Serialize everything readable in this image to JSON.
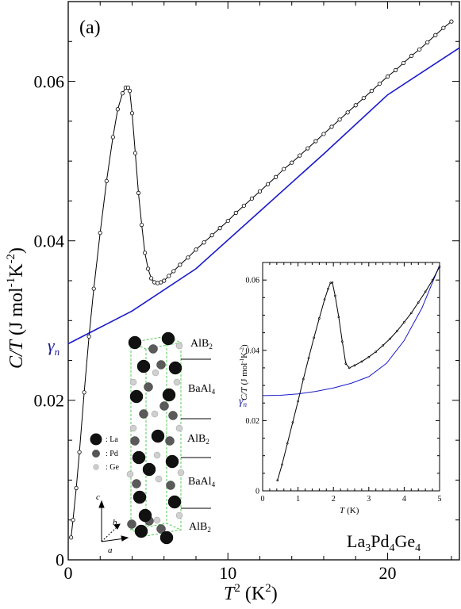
{
  "panel_label": "(a)",
  "compound_label": {
    "base": "La",
    "sub1": "3",
    "mid1": "Pd",
    "sub2": "4",
    "mid2": "Ge",
    "sub3": "4"
  },
  "gamma_label": {
    "main": "γ",
    "sub": "n"
  },
  "colors": {
    "data": "#000000",
    "fit": "#1a1acc",
    "gamma": "#1a1a99",
    "lattice": "#55cc55"
  },
  "chart_data": [
    {
      "type": "scatter",
      "panel": "main",
      "xlabel": {
        "var": "T",
        "sup": "2",
        "unit": "(K",
        "unit_sup": "2",
        "close": ")"
      },
      "ylabel": {
        "var": "C/T",
        "unit": "(J mol",
        "sup1": "-1",
        "mid": "K",
        "sup2": "-2",
        "close": ")"
      },
      "xlim": [
        0,
        24.5
      ],
      "ylim": [
        0,
        0.07
      ],
      "xticks": [
        0,
        10,
        20
      ],
      "xtick_labels": [
        "0",
        "10",
        "20"
      ],
      "yticks": [
        0,
        0.02,
        0.04,
        0.06
      ],
      "ytick_labels": [
        "0",
        "0.02",
        "0.04",
        "0.06"
      ],
      "grid": false,
      "series": [
        {
          "kind": "data",
          "x": [
            0.18,
            0.3,
            0.5,
            0.7,
            1.0,
            1.3,
            1.6,
            2.0,
            2.4,
            2.8,
            3.1,
            3.4,
            3.6,
            3.75,
            3.85,
            4.0,
            4.2,
            4.4,
            4.6,
            4.8,
            5.0,
            5.2,
            5.4,
            5.6,
            5.8,
            6.0,
            6.3,
            6.6,
            7.0,
            7.5,
            8.0,
            8.5,
            9.0,
            9.5,
            10.0,
            10.5,
            11.0,
            11.5,
            12.0,
            12.5,
            13.0,
            13.5,
            14.0,
            14.5,
            15.0,
            15.5,
            16.0,
            16.5,
            17.0,
            17.5,
            18.0,
            18.5,
            19.0,
            19.5,
            20.0,
            20.5,
            21.0,
            21.5,
            22.0,
            22.5,
            23.0,
            23.5,
            24.0
          ],
          "y": [
            0.0028,
            0.005,
            0.009,
            0.0135,
            0.021,
            0.028,
            0.034,
            0.041,
            0.0475,
            0.053,
            0.0565,
            0.0585,
            0.0592,
            0.0592,
            0.0588,
            0.056,
            0.051,
            0.046,
            0.042,
            0.0385,
            0.0365,
            0.0353,
            0.0348,
            0.0347,
            0.0348,
            0.035,
            0.0356,
            0.0362,
            0.037,
            0.0379,
            0.0389,
            0.0398,
            0.0407,
            0.0416,
            0.0425,
            0.0435,
            0.0444,
            0.0453,
            0.0462,
            0.0471,
            0.048,
            0.049,
            0.0498,
            0.0507,
            0.0516,
            0.0525,
            0.0534,
            0.0543,
            0.0552,
            0.0561,
            0.057,
            0.0579,
            0.0588,
            0.0597,
            0.0606,
            0.0614,
            0.0623,
            0.0632,
            0.064,
            0.0649,
            0.0658,
            0.0667,
            0.0675
          ]
        },
        {
          "kind": "fit",
          "x": [
            0,
            4,
            8,
            12,
            16,
            20,
            24.5
          ],
          "y": [
            0.0271,
            0.0312,
            0.0365,
            0.0437,
            0.0509,
            0.0583,
            0.0642
          ]
        }
      ],
      "annotations": {
        "gamma_n_value": 0.0271,
        "layers": [
          "AlB",
          "BaAl",
          "AlB",
          "BaAl",
          "AlB"
        ],
        "layer_subs": [
          "2",
          "4",
          "2",
          "4",
          "2"
        ],
        "legend_items": [
          ": La",
          ": Pd",
          ": Ge"
        ],
        "axis_labels": [
          "c",
          "b",
          "a"
        ]
      }
    },
    {
      "type": "scatter",
      "panel": "inset",
      "xlabel": {
        "var": "T",
        "unit": "(K)"
      },
      "ylabel": {
        "var": "C/T",
        "unit": "(J mol",
        "sup1": "-1",
        "mid": "K",
        "sup2": "-2",
        "close": ")"
      },
      "xlim": [
        0,
        5
      ],
      "ylim": [
        0,
        0.065
      ],
      "xticks": [
        0,
        1,
        2,
        3,
        4,
        5
      ],
      "xtick_labels": [
        "0",
        "1",
        "2",
        "3",
        "4",
        "5"
      ],
      "yticks": [
        0,
        0.02,
        0.04,
        0.06
      ],
      "ytick_labels": [
        "0",
        "0.02",
        "0.04",
        "0.06"
      ],
      "grid": false,
      "series": [
        {
          "kind": "data",
          "x": [
            0.42,
            0.55,
            0.7,
            0.85,
            1.0,
            1.15,
            1.3,
            1.45,
            1.6,
            1.75,
            1.85,
            1.92,
            1.97,
            2.05,
            2.15,
            2.25,
            2.35,
            2.45,
            2.6,
            2.8,
            3.0,
            3.2,
            3.4,
            3.6,
            3.8,
            4.0,
            4.2,
            4.4,
            4.6,
            4.8,
            5.0
          ],
          "y": [
            0.003,
            0.0075,
            0.0135,
            0.0195,
            0.0255,
            0.0318,
            0.0378,
            0.0436,
            0.0491,
            0.0545,
            0.0575,
            0.0592,
            0.0593,
            0.0555,
            0.0495,
            0.0425,
            0.0362,
            0.035,
            0.0357,
            0.0368,
            0.0381,
            0.0396,
            0.0414,
            0.0433,
            0.0455,
            0.048,
            0.0506,
            0.0536,
            0.0567,
            0.06,
            0.0638
          ]
        },
        {
          "kind": "fit",
          "x": [
            0,
            0.5,
            1,
            1.5,
            2,
            2.5,
            3,
            3.5,
            4,
            4.5,
            5
          ],
          "y": [
            0.0271,
            0.0272,
            0.0276,
            0.0283,
            0.0293,
            0.0306,
            0.0325,
            0.0363,
            0.0428,
            0.052,
            0.0642
          ]
        }
      ]
    }
  ]
}
